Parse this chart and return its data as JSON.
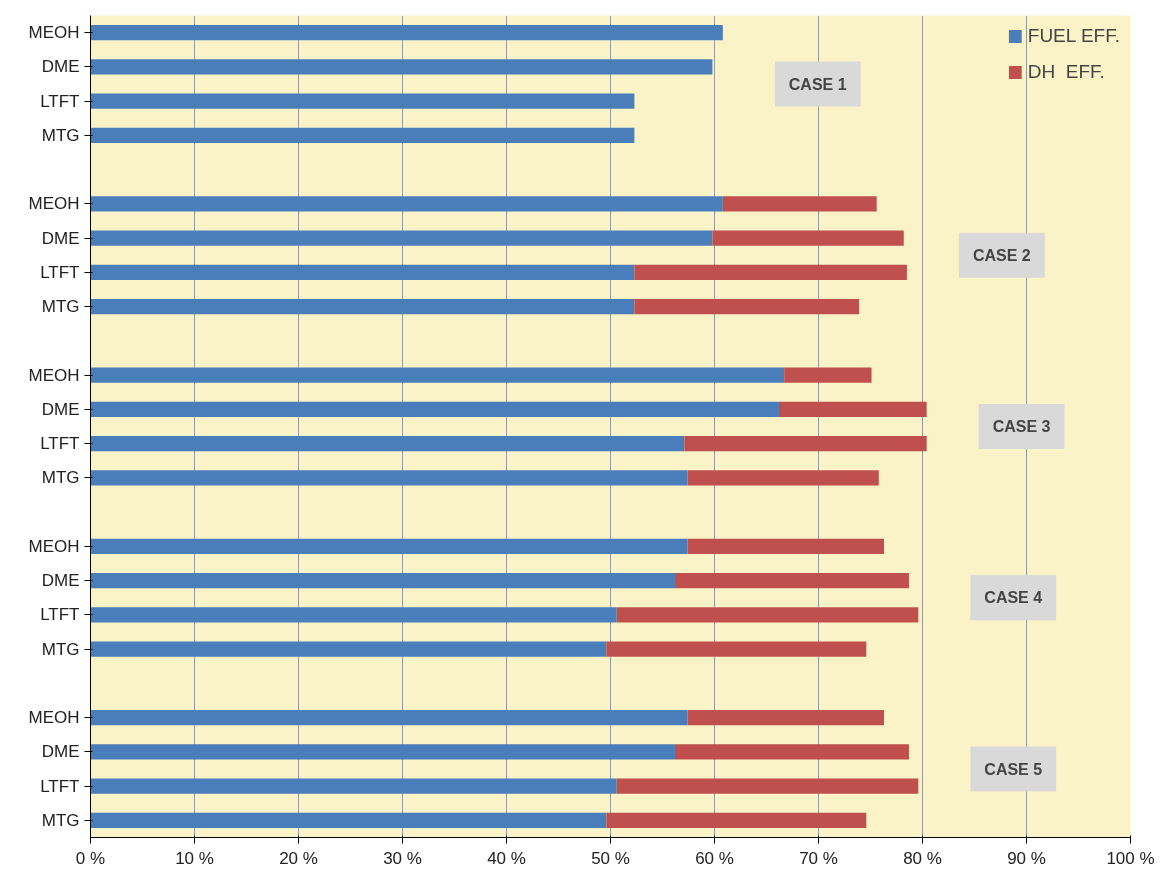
{
  "chart_data": {
    "type": "bar",
    "orientation": "horizontal",
    "stacked": true,
    "categories": [
      "MEOH",
      "DME",
      "LTFT",
      "MTG",
      null,
      "MEOH",
      "DME",
      "LTFT",
      "MTG",
      null,
      "MEOH",
      "DME",
      "LTFT",
      "MTG",
      null,
      "MEOH",
      "DME",
      "LTFT",
      "MTG",
      null,
      "MEOH",
      "DME",
      "LTFT",
      "MTG"
    ],
    "series": [
      {
        "name": "FUEL EFF.",
        "color": "#4a7ebb",
        "values": [
          60.8,
          59.8,
          52.3,
          52.3,
          null,
          60.8,
          59.8,
          52.3,
          52.3,
          null,
          66.7,
          66.2,
          57.1,
          57.4,
          null,
          57.4,
          56.2,
          50.6,
          49.6,
          null,
          57.4,
          56.2,
          50.6,
          49.6
        ]
      },
      {
        "name": "DH  EFF.",
        "color": "#c0504d",
        "values": [
          null,
          null,
          null,
          null,
          null,
          14.8,
          18.4,
          26.2,
          21.6,
          null,
          8.4,
          14.2,
          23.3,
          18.4,
          null,
          18.9,
          22.5,
          29.0,
          25.0,
          null,
          18.9,
          22.5,
          29.0,
          25.0
        ]
      }
    ],
    "xlim": [
      0,
      100
    ],
    "xticks": [
      {
        "value": 0,
        "label": "0 %"
      },
      {
        "value": 10,
        "label": "10 %"
      },
      {
        "value": 20,
        "label": "20 %"
      },
      {
        "value": 30,
        "label": "30 %"
      },
      {
        "value": 40,
        "label": "40 %"
      },
      {
        "value": 50,
        "label": "50 %"
      },
      {
        "value": 60,
        "label": "60 %"
      },
      {
        "value": 70,
        "label": "70 %"
      },
      {
        "value": 80,
        "label": "80 %"
      },
      {
        "value": 90,
        "label": "90 %"
      },
      {
        "value": 100,
        "label": "100 %"
      }
    ],
    "annotations": [
      "CASE 1",
      "CASE 2",
      "CASE 3",
      "CASE 4",
      "CASE 5"
    ],
    "grid": "x",
    "legend": "top right"
  }
}
